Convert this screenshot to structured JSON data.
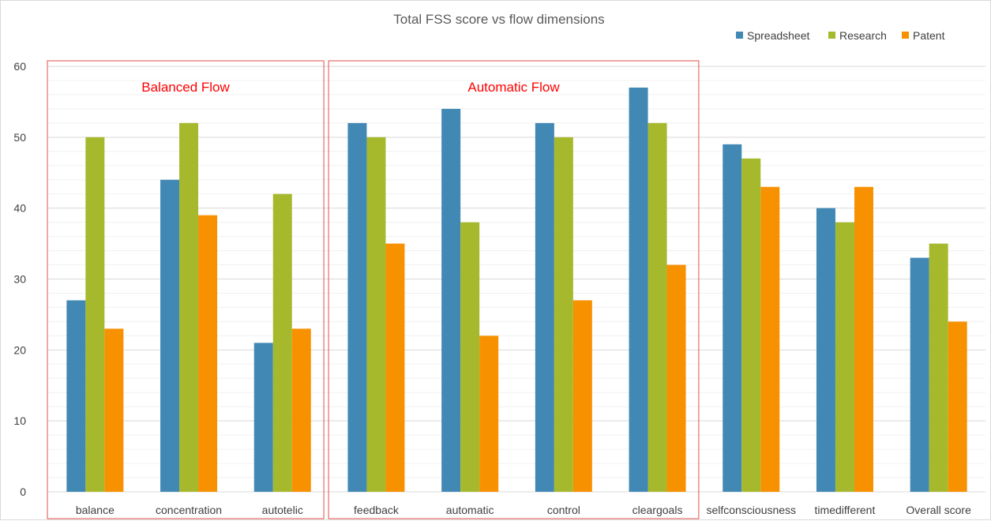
{
  "chart_data": {
    "type": "bar",
    "title": "Total FSS score vs flow dimensions",
    "xlabel": "",
    "ylabel": "",
    "categories": [
      "balance",
      "concentration",
      "autotelic",
      "feedback",
      "automatic",
      "control",
      "cleargoals",
      "selfconsciousness",
      "timedifferent",
      "Overall score"
    ],
    "series": [
      {
        "name": "Spreadsheet",
        "color": "#4188b5",
        "values": [
          27,
          44,
          21,
          52,
          54,
          52,
          57,
          49,
          40,
          33
        ]
      },
      {
        "name": "Research",
        "color": "#a6b92c",
        "values": [
          50,
          52,
          42,
          50,
          38,
          50,
          52,
          47,
          38,
          35
        ]
      },
      {
        "name": "Patent",
        "color": "#f79100",
        "values": [
          23,
          39,
          23,
          35,
          22,
          27,
          32,
          43,
          43,
          24
        ]
      }
    ],
    "ylim": [
      0,
      60
    ],
    "y_ticks": [
      0,
      10,
      20,
      30,
      40,
      50,
      60
    ],
    "grid": true,
    "legend_position": "top-right",
    "annotations": [
      {
        "label": "Balanced Flow",
        "color": "#ff0000",
        "first_category": 0,
        "last_category": 2
      },
      {
        "label": "Automatic Flow",
        "color": "#ff0000",
        "first_category": 3,
        "last_category": 6
      }
    ]
  }
}
